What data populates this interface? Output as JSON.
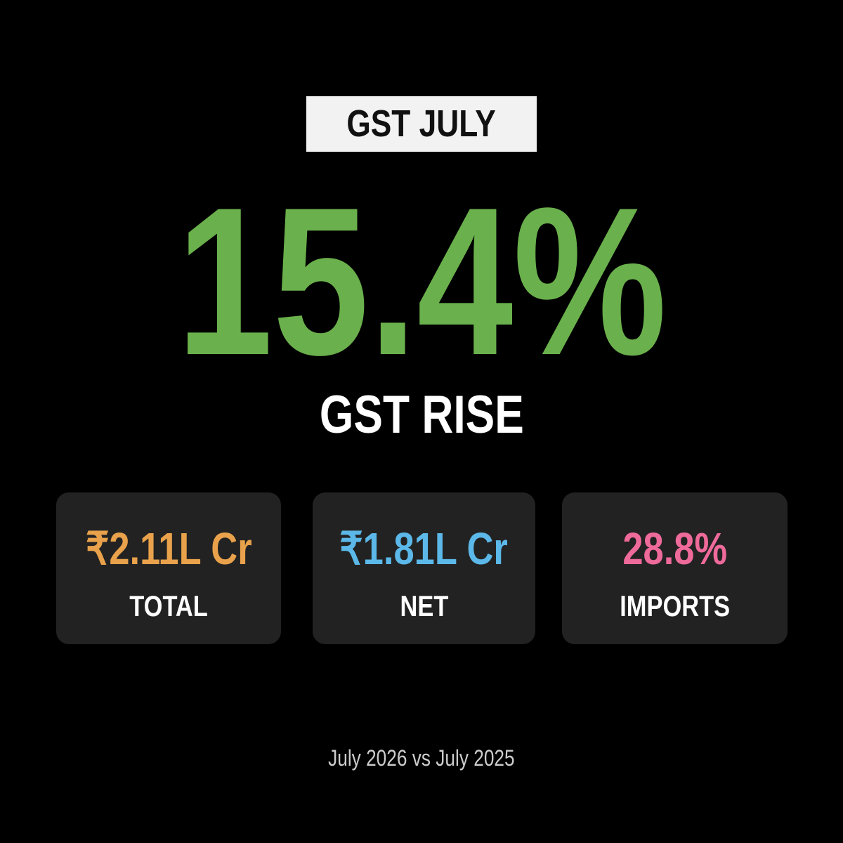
{
  "badge": "GST JULY",
  "headline": "15.4%",
  "subheadline": "GST RISE",
  "cards": [
    {
      "value": "₹2.11L Cr",
      "label": "TOTAL"
    },
    {
      "value": "₹1.81L Cr",
      "label": "NET"
    },
    {
      "value": "28.8%",
      "label": "IMPORTS"
    }
  ],
  "footer": "July 2026 vs July 2025"
}
